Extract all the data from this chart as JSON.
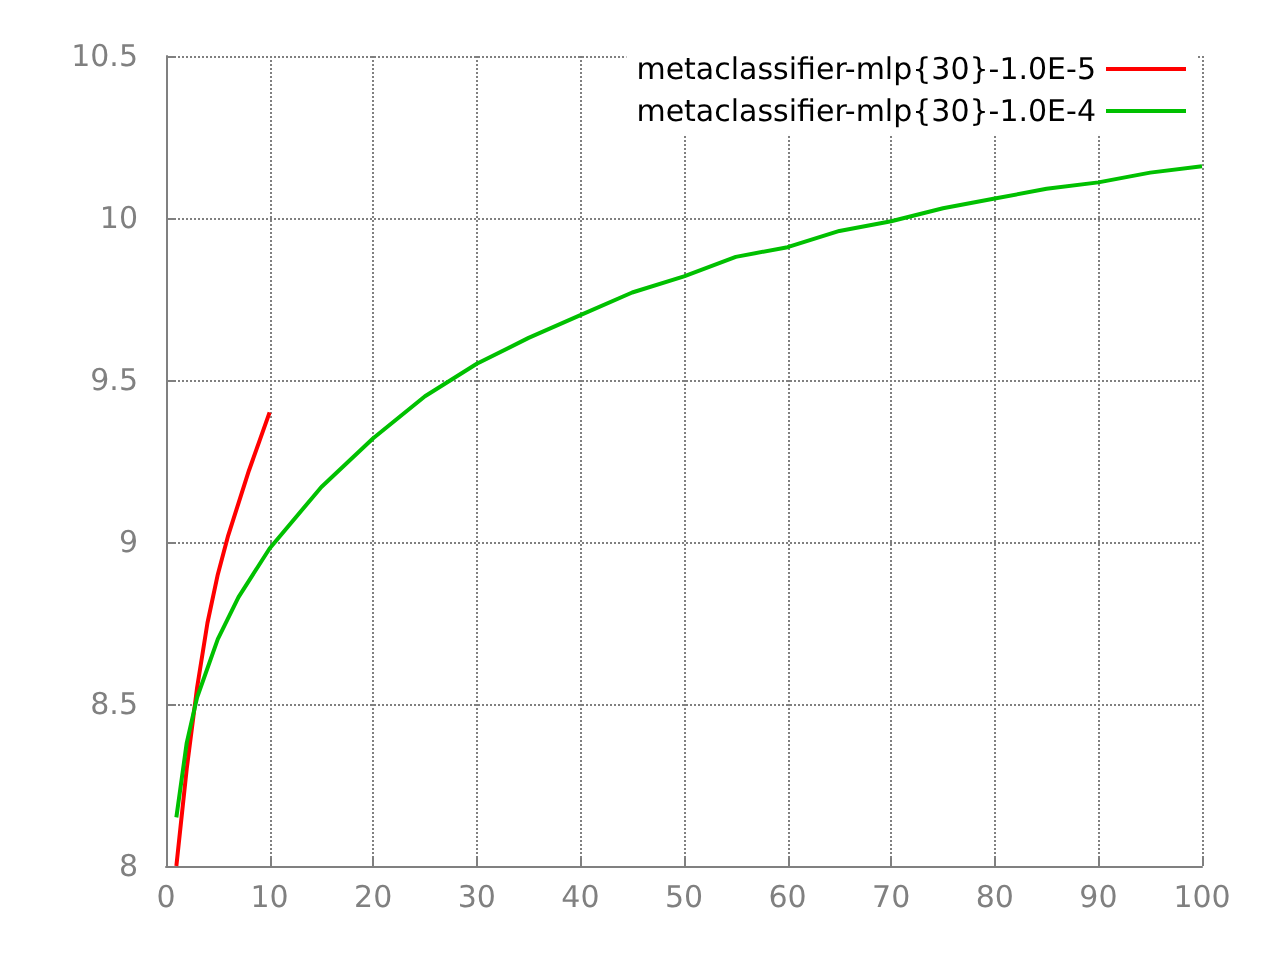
{
  "chart_data": {
    "type": "line",
    "xlim": [
      0,
      100
    ],
    "xticks": [
      0,
      10,
      20,
      30,
      40,
      50,
      60,
      70,
      80,
      90,
      100
    ],
    "ylim": [
      8,
      10.5
    ],
    "yticks": [
      8,
      8.5,
      9,
      9.5,
      10,
      10.5
    ],
    "grid": true,
    "legend": "top right",
    "marker": "none",
    "line_style": "solid",
    "series": [
      {
        "name": "metaclassifier-mlp{30}-1.0E-5",
        "color": "#ff0000",
        "x": [
          1,
          2,
          3,
          4,
          5,
          6,
          7,
          8,
          9,
          10
        ],
        "values": [
          8.0,
          8.3,
          8.55,
          8.75,
          8.9,
          9.02,
          9.12,
          9.22,
          9.31,
          9.4
        ]
      },
      {
        "name": "metaclassifier-mlp{30}-1.0E-4",
        "color": "#00c000",
        "x": [
          1,
          2,
          3,
          5,
          7,
          10,
          15,
          20,
          25,
          30,
          35,
          40,
          45,
          50,
          55,
          60,
          65,
          70,
          75,
          80,
          85,
          90,
          95,
          100
        ],
        "values": [
          8.15,
          8.38,
          8.52,
          8.7,
          8.83,
          8.98,
          9.17,
          9.32,
          9.45,
          9.55,
          9.63,
          9.7,
          9.77,
          9.82,
          9.88,
          9.91,
          9.96,
          9.99,
          10.03,
          10.06,
          10.09,
          10.11,
          10.14,
          10.16
        ]
      }
    ]
  }
}
